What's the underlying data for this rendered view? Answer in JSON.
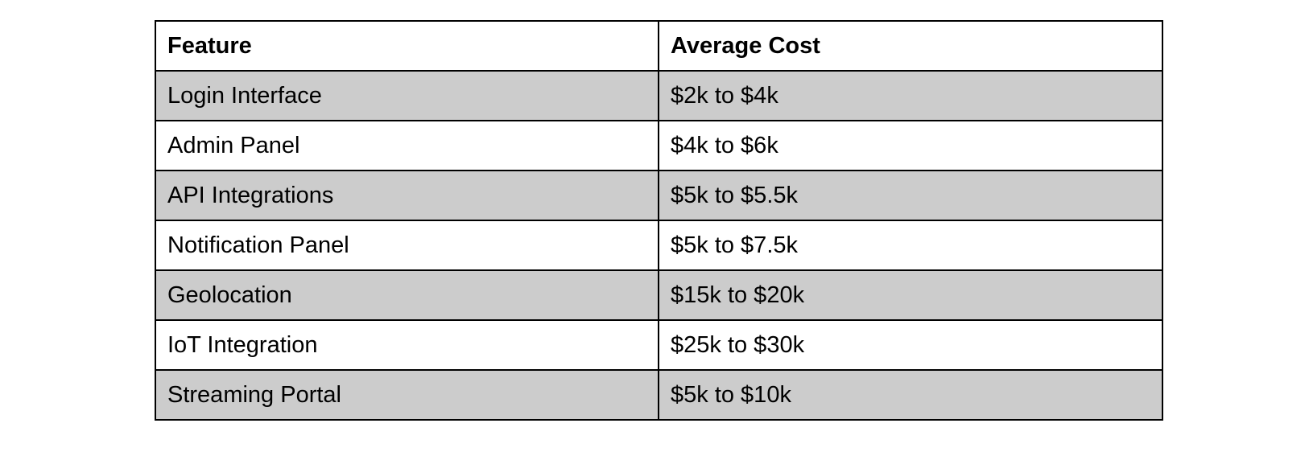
{
  "table": {
    "headers": [
      "Feature",
      "Average Cost"
    ],
    "rows": [
      [
        "Login Interface",
        "$2k to $4k"
      ],
      [
        "Admin Panel",
        "$4k to $6k"
      ],
      [
        "API Integrations",
        "$5k to $5.5k"
      ],
      [
        "Notification Panel",
        "$5k to $7.5k"
      ],
      [
        "Geolocation",
        "$15k to $20k"
      ],
      [
        "IoT Integration",
        "$25k to $30k"
      ],
      [
        "Streaming Portal",
        "$5k to $10k"
      ]
    ],
    "shaded_row_color": "#cccccc",
    "plain_row_color": "#ffffff",
    "border_color": "#000000"
  }
}
